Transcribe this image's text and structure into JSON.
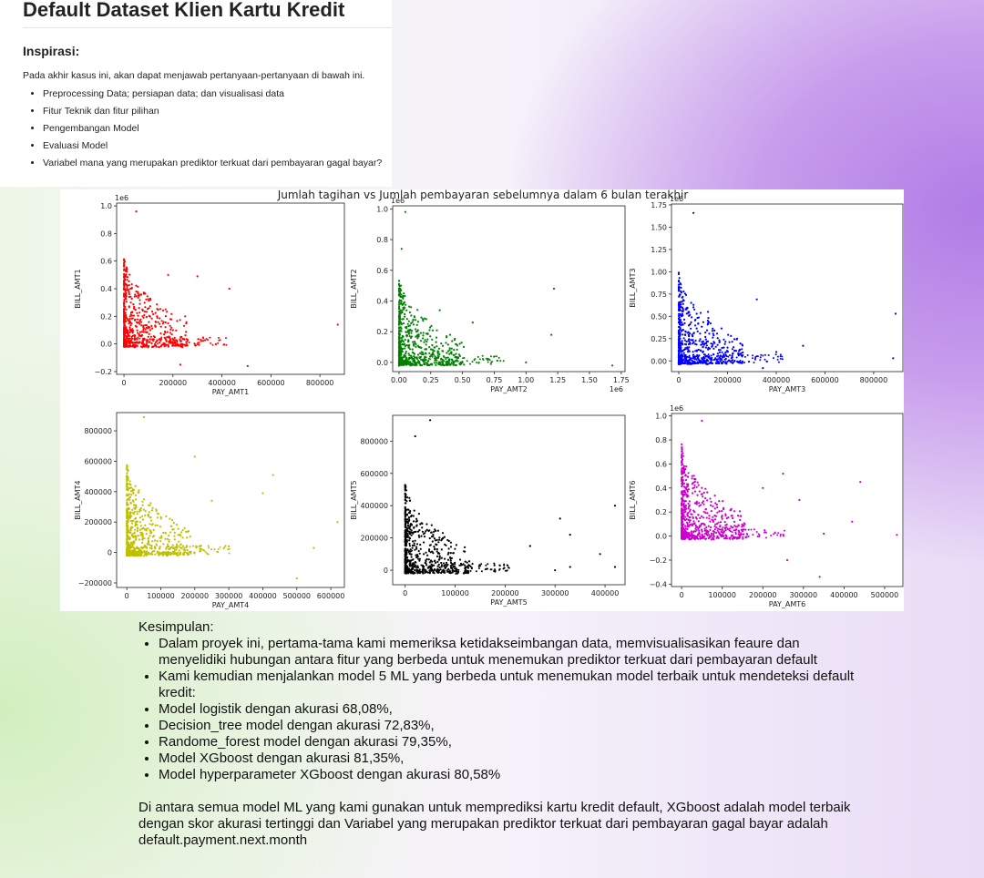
{
  "header": {
    "title": "Default Dataset Klien Kartu Kredit",
    "subtitle": "Inspirasi:",
    "intro": "Pada akhir kasus ini, akan dapat menjawab pertanyaan-pertanyaan di bawah ini.",
    "bullets": [
      "Preprocessing Data; persiapan data; dan visualisasi data",
      "Fitur Teknik dan fitur pilihan",
      "Pengembangan Model",
      "Evaluasi Model",
      "Variabel mana yang merupakan prediktor terkuat dari pembayaran gagal bayar?"
    ]
  },
  "chart_data": {
    "type": "scatter",
    "title": "Jumlah tagihan vs Jumlah pembayaran sebelumnya dalam 6 bulan terakhir",
    "panels": [
      {
        "name": "panel-1",
        "xlabel": "PAY_AMT1",
        "ylabel": "BILL_AMT1",
        "color": "#ff0000",
        "x_scale_label": "",
        "y_scale_label": "1e6",
        "xlim": [
          -30000,
          900000
        ],
        "ylim": [
          -0.22,
          1.02
        ],
        "xticks": [
          0,
          200000,
          400000,
          600000,
          800000
        ],
        "xtick_labels": [
          "0",
          "200000",
          "400000",
          "600000",
          "800000"
        ],
        "yticks": [
          -0.2,
          0.0,
          0.2,
          0.4,
          0.6,
          0.8,
          1.0
        ],
        "ytick_labels": [
          "−0.2",
          "0.0",
          "0.2",
          "0.4",
          "0.6",
          "0.8",
          "1.0"
        ],
        "outliers": [
          [
            50000,
            0.96
          ],
          [
            873000,
            0.14
          ],
          [
            505000,
            -0.16
          ],
          [
            430000,
            0.4
          ],
          [
            300000,
            0.49
          ],
          [
            230000,
            -0.15
          ],
          [
            180000,
            0.5
          ],
          [
            170000,
            0.25
          ],
          [
            200000,
            0.1
          ],
          [
            250000,
            0.2
          ]
        ]
      },
      {
        "name": "panel-2",
        "xlabel": "PAY_AMT2",
        "ylabel": "BILL_AMT2",
        "color": "#008000",
        "x_scale_label": "1e6",
        "y_scale_label": "1e6",
        "xlim": [
          -0.05,
          1.78
        ],
        "ylim": [
          -0.06,
          1.02
        ],
        "xticks": [
          0.0,
          0.25,
          0.5,
          0.75,
          1.0,
          1.25,
          1.5,
          1.75
        ],
        "xtick_labels": [
          "0.00",
          "0.25",
          "0.50",
          "0.75",
          "1.00",
          "1.25",
          "1.50",
          "1.75"
        ],
        "yticks": [
          0.0,
          0.2,
          0.4,
          0.6,
          0.8,
          1.0
        ],
        "ytick_labels": [
          "0.0",
          "0.2",
          "0.4",
          "0.6",
          "0.8",
          "1.0"
        ],
        "outliers": [
          [
            0.05,
            0.98
          ],
          [
            1.68,
            -0.02
          ],
          [
            1.22,
            0.48
          ],
          [
            1.2,
            0.18
          ],
          [
            0.58,
            0.26
          ],
          [
            1.0,
            0.0
          ],
          [
            0.32,
            0.34
          ],
          [
            0.02,
            0.74
          ],
          [
            0.4,
            0.02
          ]
        ]
      },
      {
        "name": "panel-3",
        "xlabel": "PAY_AMT3",
        "ylabel": "BILL_AMT3",
        "color": "#0000ff",
        "x_scale_label": "",
        "y_scale_label": "1e6",
        "xlim": [
          -30000,
          920000
        ],
        "ylim": [
          -0.12,
          1.76
        ],
        "xticks": [
          0,
          200000,
          400000,
          600000,
          800000
        ],
        "xtick_labels": [
          "0",
          "200000",
          "400000",
          "600000",
          "800000"
        ],
        "yticks": [
          0.0,
          0.25,
          0.5,
          0.75,
          1.0,
          1.25,
          1.5,
          1.75
        ],
        "ytick_labels": [
          "0.00",
          "0.25",
          "0.50",
          "0.75",
          "1.00",
          "1.25",
          "1.50",
          "1.75"
        ],
        "outliers": [
          [
            60000,
            1.66
          ],
          [
            890000,
            0.53
          ],
          [
            880000,
            0.03
          ],
          [
            320000,
            0.69
          ],
          [
            345000,
            -0.08
          ],
          [
            510000,
            0.17
          ],
          [
            120000,
            0.55
          ],
          [
            200000,
            0.15
          ],
          [
            260000,
            0.05
          ],
          [
            400000,
            0.1
          ]
        ]
      },
      {
        "name": "panel-4",
        "xlabel": "PAY_AMT4",
        "ylabel": "BILL_AMT4",
        "color": "#bfbf00",
        "x_scale_label": "",
        "y_scale_label": "",
        "xlim": [
          -30000,
          640000
        ],
        "ylim": [
          -230000,
          920000
        ],
        "xticks": [
          0,
          100000,
          200000,
          300000,
          400000,
          500000,
          600000
        ],
        "xtick_labels": [
          "0",
          "100000",
          "200000",
          "300000",
          "400000",
          "500000",
          "600000"
        ],
        "yticks": [
          -200000,
          0,
          200000,
          400000,
          600000,
          800000
        ],
        "ytick_labels": [
          "−200000",
          "0",
          "200000",
          "400000",
          "600000",
          "800000"
        ],
        "outliers": [
          [
            50000,
            890000
          ],
          [
            620000,
            200000
          ],
          [
            500000,
            -170000
          ],
          [
            550000,
            30000
          ],
          [
            200000,
            630000
          ],
          [
            430000,
            510000
          ],
          [
            400000,
            390000
          ],
          [
            250000,
            340000
          ],
          [
            300000,
            40000
          ],
          [
            170000,
            160000
          ]
        ]
      },
      {
        "name": "panel-5",
        "xlabel": "PAY_AMT5",
        "ylabel": "BILL_AMT5",
        "color": "#000000",
        "x_scale_label": "",
        "y_scale_label": "",
        "xlim": [
          -25000,
          440000
        ],
        "ylim": [
          -90000,
          960000
        ],
        "xticks": [
          0,
          100000,
          200000,
          300000,
          400000
        ],
        "xtick_labels": [
          "0",
          "100000",
          "200000",
          "300000",
          "400000"
        ],
        "yticks": [
          0,
          200000,
          400000,
          600000,
          800000
        ],
        "ytick_labels": [
          "0",
          "200000",
          "400000",
          "600000",
          "800000"
        ],
        "outliers": [
          [
            50000,
            930000
          ],
          [
            20000,
            830000
          ],
          [
            420000,
            400000
          ],
          [
            330000,
            220000
          ],
          [
            310000,
            320000
          ],
          [
            300000,
            0
          ],
          [
            330000,
            20000
          ],
          [
            390000,
            100000
          ],
          [
            420000,
            20000
          ],
          [
            250000,
            150000
          ]
        ]
      },
      {
        "name": "panel-6",
        "xlabel": "PAY_AMT6",
        "ylabel": "BILL_AMT6",
        "color": "#cc00cc",
        "x_scale_label": "",
        "y_scale_label": "1e6",
        "xlim": [
          -25000,
          545000
        ],
        "ylim": [
          -0.42,
          1.02
        ],
        "xticks": [
          0,
          100000,
          200000,
          300000,
          400000,
          500000
        ],
        "xtick_labels": [
          "0",
          "100000",
          "200000",
          "300000",
          "400000",
          "500000"
        ],
        "yticks": [
          -0.4,
          -0.2,
          0.0,
          0.2,
          0.4,
          0.6,
          0.8,
          1.0
        ],
        "ytick_labels": [
          "−0.4",
          "−0.2",
          "0.0",
          "0.2",
          "0.4",
          "0.6",
          "0.8",
          "1.0"
        ],
        "outliers": [
          [
            50000,
            0.96
          ],
          [
            340000,
            -0.34
          ],
          [
            440000,
            0.45
          ],
          [
            530000,
            0.01
          ],
          [
            250000,
            0.52
          ],
          [
            290000,
            0.3
          ],
          [
            420000,
            0.12
          ],
          [
            260000,
            -0.2
          ],
          [
            350000,
            0.02
          ],
          [
            200000,
            0.4
          ]
        ]
      }
    ]
  },
  "conclusion": {
    "heading": "Kesimpulan:",
    "bullets": [
      "Dalam proyek ini, pertama-tama kami memeriksa ketidakseimbangan data, memvisualisasikan feaure dan menyelidiki hubungan antara fitur yang berbeda untuk menemukan prediktor terkuat dari pembayaran default",
      "Kami kemudian menjalankan model 5 ML yang berbeda untuk menemukan model terbaik untuk mendeteksi default kredit:",
      "Model logistik dengan akurasi 68,08%,",
      "Decision_tree model dengan akurasi 72,83%,",
      "Randome_forest model dengan akurasi 79,35%,",
      "Model XGboost dengan akurasi 81,35%,",
      "Model hyperparameter XGboost dengan akurasi 80,58%"
    ],
    "closing": "Di antara semua model ML yang kami gunakan untuk memprediksi kartu kredit default, XGboost adalah model terbaik dengan skor akurasi tertinggi dan Variabel yang merupakan prediktor terkuat dari pembayaran gagal bayar adalah default.payment.next.month"
  }
}
